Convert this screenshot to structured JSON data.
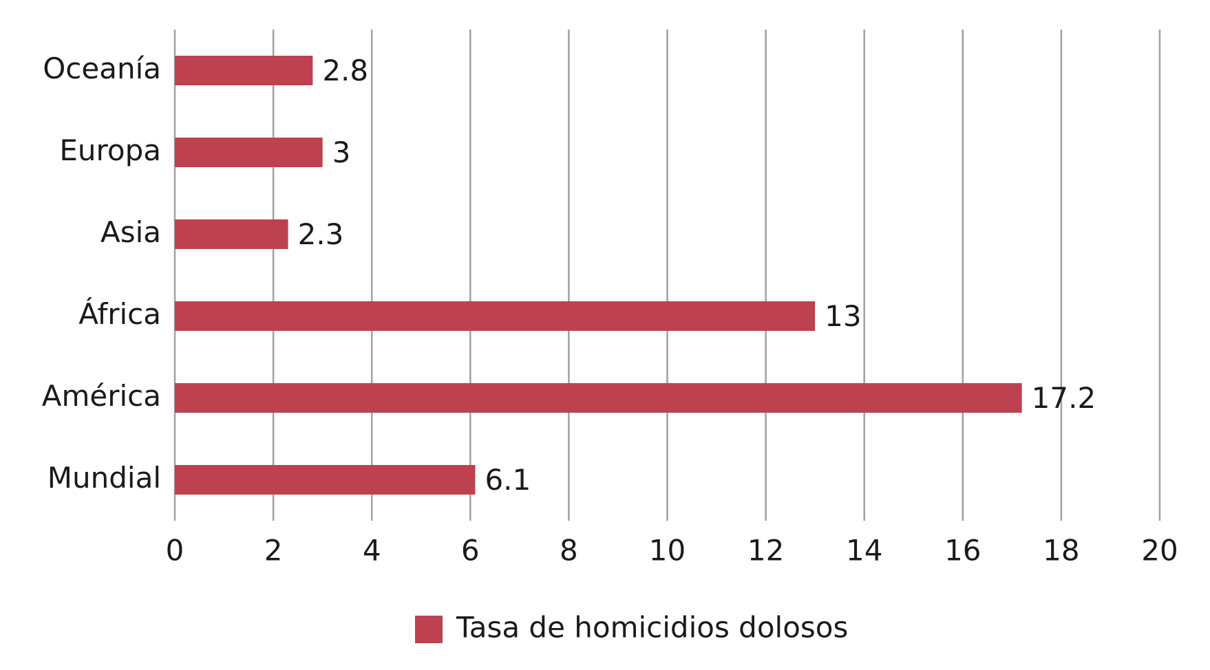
{
  "chart_data": {
    "type": "bar",
    "orientation": "horizontal",
    "categories": [
      "Oceanía",
      "Europa",
      "Asia",
      "África",
      "América",
      "Mundial"
    ],
    "series": [
      {
        "name": "Tasa de homicidios dolosos",
        "color": "#be4150",
        "values": [
          2.8,
          3,
          2.3,
          13,
          17.2,
          6.1
        ]
      }
    ],
    "xlim": [
      0,
      20
    ],
    "xticks": [
      0,
      2,
      4,
      6,
      8,
      10,
      12,
      14,
      16,
      18,
      20
    ],
    "grid": true,
    "legend": "bottom"
  }
}
